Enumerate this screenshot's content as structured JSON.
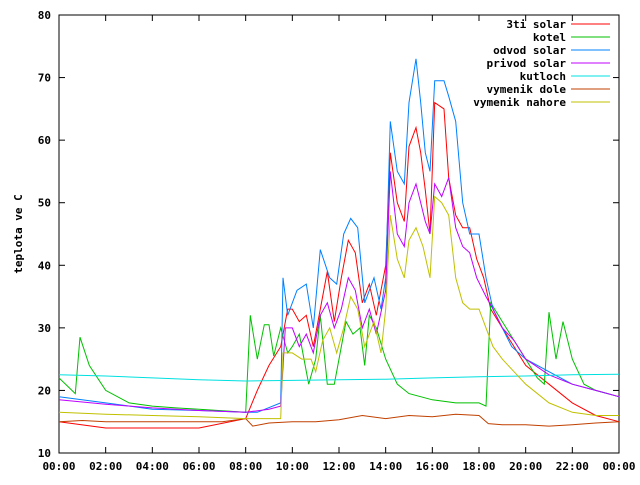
{
  "chart_data": {
    "type": "line",
    "ylabel": "teplota ve C",
    "xlabel": "",
    "xlim": [
      0,
      24
    ],
    "ylim": [
      10,
      80
    ],
    "x_ticks": [
      {
        "v": 0,
        "label": "00:00"
      },
      {
        "v": 2,
        "label": "02:00"
      },
      {
        "v": 4,
        "label": "04:00"
      },
      {
        "v": 6,
        "label": "06:00"
      },
      {
        "v": 8,
        "label": "08:00"
      },
      {
        "v": 10,
        "label": "10:00"
      },
      {
        "v": 12,
        "label": "12:00"
      },
      {
        "v": 14,
        "label": "14:00"
      },
      {
        "v": 16,
        "label": "16:00"
      },
      {
        "v": 18,
        "label": "18:00"
      },
      {
        "v": 20,
        "label": "20:00"
      },
      {
        "v": 22,
        "label": "22:00"
      },
      {
        "v": 24,
        "label": "00:00"
      }
    ],
    "y_ticks": [
      {
        "v": 10,
        "label": "10"
      },
      {
        "v": 20,
        "label": "20"
      },
      {
        "v": 30,
        "label": "30"
      },
      {
        "v": 40,
        "label": "40"
      },
      {
        "v": 50,
        "label": "50"
      },
      {
        "v": 60,
        "label": "60"
      },
      {
        "v": 70,
        "label": "70"
      },
      {
        "v": 80,
        "label": "80"
      }
    ],
    "grid": false,
    "legend_position": "top-right",
    "series": [
      {
        "name": "3ti solar",
        "color": "#ff0000",
        "points": [
          [
            0,
            15
          ],
          [
            2,
            14
          ],
          [
            4,
            14
          ],
          [
            6,
            14
          ],
          [
            8,
            15.5
          ],
          [
            8.5,
            20
          ],
          [
            9,
            24
          ],
          [
            9.5,
            27
          ],
          [
            9.8,
            33
          ],
          [
            10,
            33
          ],
          [
            10.3,
            31
          ],
          [
            10.6,
            32
          ],
          [
            10.9,
            27
          ],
          [
            11.2,
            33
          ],
          [
            11.5,
            39
          ],
          [
            11.8,
            31
          ],
          [
            12.1,
            38
          ],
          [
            12.4,
            44
          ],
          [
            12.7,
            42
          ],
          [
            13,
            34
          ],
          [
            13.3,
            37
          ],
          [
            13.6,
            32
          ],
          [
            14,
            40
          ],
          [
            14.2,
            58
          ],
          [
            14.5,
            50
          ],
          [
            14.8,
            47
          ],
          [
            15,
            59
          ],
          [
            15.3,
            62
          ],
          [
            15.5,
            58
          ],
          [
            15.7,
            52
          ],
          [
            15.9,
            45
          ],
          [
            16.1,
            66
          ],
          [
            16.5,
            65
          ],
          [
            16.7,
            54
          ],
          [
            17,
            48
          ],
          [
            17.3,
            46
          ],
          [
            17.6,
            46
          ],
          [
            17.9,
            41
          ],
          [
            18.2,
            38
          ],
          [
            18.5,
            33
          ],
          [
            19,
            30
          ],
          [
            19.5,
            27
          ],
          [
            20,
            24
          ],
          [
            21,
            21
          ],
          [
            22,
            18
          ],
          [
            23,
            16
          ],
          [
            24,
            15
          ]
        ]
      },
      {
        "name": "kotel",
        "color": "#00c000",
        "points": [
          [
            0,
            22
          ],
          [
            0.7,
            19.5
          ],
          [
            0.9,
            28.5
          ],
          [
            1.3,
            24
          ],
          [
            2,
            20
          ],
          [
            3,
            18
          ],
          [
            4,
            17.5
          ],
          [
            5,
            17.2
          ],
          [
            6,
            17
          ],
          [
            8,
            16.5
          ],
          [
            8.2,
            32
          ],
          [
            8.5,
            25
          ],
          [
            8.8,
            30.5
          ],
          [
            9,
            30.5
          ],
          [
            9.2,
            25.5
          ],
          [
            9.5,
            30
          ],
          [
            9.8,
            26
          ],
          [
            10,
            27
          ],
          [
            10.3,
            29
          ],
          [
            10.7,
            21
          ],
          [
            11,
            25
          ],
          [
            11.2,
            32
          ],
          [
            11.5,
            21
          ],
          [
            11.8,
            21
          ],
          [
            12,
            25
          ],
          [
            12.3,
            31
          ],
          [
            12.6,
            29
          ],
          [
            12.9,
            30
          ],
          [
            13.1,
            24
          ],
          [
            13.3,
            32
          ],
          [
            13.6,
            30
          ],
          [
            14,
            25
          ],
          [
            14.5,
            21
          ],
          [
            15,
            19.5
          ],
          [
            16,
            18.5
          ],
          [
            17,
            18
          ],
          [
            18,
            18
          ],
          [
            18.3,
            17.5
          ],
          [
            18.5,
            34
          ],
          [
            19,
            31
          ],
          [
            19.5,
            28
          ],
          [
            20,
            25
          ],
          [
            20.5,
            22
          ],
          [
            20.8,
            21
          ],
          [
            21,
            32.5
          ],
          [
            21.3,
            25
          ],
          [
            21.6,
            31
          ],
          [
            22,
            25
          ],
          [
            22.5,
            21
          ],
          [
            23,
            20
          ],
          [
            24,
            19
          ]
        ]
      },
      {
        "name": "odvod solar",
        "color": "#0080ff",
        "points": [
          [
            0,
            19
          ],
          [
            2,
            18
          ],
          [
            4,
            17
          ],
          [
            6,
            16.8
          ],
          [
            8,
            16.5
          ],
          [
            8.5,
            16.5
          ],
          [
            9.5,
            18
          ],
          [
            9.6,
            38
          ],
          [
            9.8,
            32
          ],
          [
            10.2,
            36
          ],
          [
            10.6,
            37
          ],
          [
            10.9,
            30
          ],
          [
            11.2,
            42.5
          ],
          [
            11.6,
            38
          ],
          [
            11.9,
            37
          ],
          [
            12.2,
            45
          ],
          [
            12.5,
            47.5
          ],
          [
            12.8,
            46
          ],
          [
            13.1,
            34
          ],
          [
            13.5,
            38
          ],
          [
            13.8,
            33
          ],
          [
            14,
            38
          ],
          [
            14.2,
            63
          ],
          [
            14.5,
            55
          ],
          [
            14.8,
            53
          ],
          [
            15,
            66
          ],
          [
            15.3,
            73
          ],
          [
            15.5,
            66
          ],
          [
            15.7,
            58
          ],
          [
            15.9,
            55
          ],
          [
            16.1,
            69.5
          ],
          [
            16.5,
            69.5
          ],
          [
            16.7,
            67
          ],
          [
            17,
            63
          ],
          [
            17.3,
            50
          ],
          [
            17.6,
            45
          ],
          [
            18,
            45
          ],
          [
            18.3,
            38
          ],
          [
            18.6,
            33
          ],
          [
            19,
            30
          ],
          [
            19.4,
            27
          ],
          [
            20,
            25
          ],
          [
            21,
            23
          ],
          [
            22,
            21
          ],
          [
            23,
            20
          ],
          [
            24,
            19
          ]
        ]
      },
      {
        "name": "privod solar",
        "color": "#c000ff",
        "points": [
          [
            0,
            18.5
          ],
          [
            2,
            17.8
          ],
          [
            4,
            17.2
          ],
          [
            6,
            16.8
          ],
          [
            8,
            16.5
          ],
          [
            9,
            17
          ],
          [
            9.5,
            17.5
          ],
          [
            9.7,
            30
          ],
          [
            10,
            30
          ],
          [
            10.3,
            27
          ],
          [
            10.6,
            29
          ],
          [
            10.9,
            26
          ],
          [
            11.2,
            32
          ],
          [
            11.5,
            34
          ],
          [
            11.8,
            30
          ],
          [
            12.1,
            33
          ],
          [
            12.4,
            38
          ],
          [
            12.7,
            36
          ],
          [
            13,
            30
          ],
          [
            13.3,
            33
          ],
          [
            13.6,
            29
          ],
          [
            14,
            36
          ],
          [
            14.2,
            55
          ],
          [
            14.5,
            45
          ],
          [
            14.8,
            43
          ],
          [
            15,
            50
          ],
          [
            15.3,
            53
          ],
          [
            15.5,
            50
          ],
          [
            15.7,
            47
          ],
          [
            15.9,
            45
          ],
          [
            16.1,
            53
          ],
          [
            16.4,
            51
          ],
          [
            16.7,
            54
          ],
          [
            17,
            46
          ],
          [
            17.3,
            43
          ],
          [
            17.6,
            42
          ],
          [
            17.9,
            38
          ],
          [
            18.3,
            35
          ],
          [
            18.6,
            33
          ],
          [
            19,
            30
          ],
          [
            19.5,
            28
          ],
          [
            20,
            25
          ],
          [
            21,
            22.5
          ],
          [
            22,
            21
          ],
          [
            23,
            20
          ],
          [
            24,
            19
          ]
        ]
      },
      {
        "name": "kutloch",
        "color": "#00e0e0",
        "points": [
          [
            0,
            22.5
          ],
          [
            2,
            22.3
          ],
          [
            4,
            22
          ],
          [
            6,
            21.7
          ],
          [
            8,
            21.5
          ],
          [
            10,
            21.6
          ],
          [
            12,
            21.7
          ],
          [
            14,
            21.8
          ],
          [
            16,
            22
          ],
          [
            18,
            22.2
          ],
          [
            20,
            22.3
          ],
          [
            22,
            22.5
          ],
          [
            24,
            22.6
          ]
        ]
      },
      {
        "name": "vymenik dole",
        "color": "#c04000",
        "points": [
          [
            0,
            15
          ],
          [
            1,
            15.2
          ],
          [
            2,
            15
          ],
          [
            3,
            15
          ],
          [
            4,
            15
          ],
          [
            5,
            15
          ],
          [
            6,
            15
          ],
          [
            7,
            15
          ],
          [
            8,
            15.5
          ],
          [
            8.3,
            14.3
          ],
          [
            9,
            14.8
          ],
          [
            10,
            15
          ],
          [
            11,
            15
          ],
          [
            12,
            15.3
          ],
          [
            13,
            16
          ],
          [
            14,
            15.5
          ],
          [
            15,
            16
          ],
          [
            16,
            15.8
          ],
          [
            17,
            16.2
          ],
          [
            18,
            16
          ],
          [
            18.4,
            14.7
          ],
          [
            19,
            14.5
          ],
          [
            20,
            14.5
          ],
          [
            21,
            14.3
          ],
          [
            22,
            14.5
          ],
          [
            23,
            14.8
          ],
          [
            24,
            15
          ]
        ]
      },
      {
        "name": "vymenik nahore",
        "color": "#c0c000",
        "points": [
          [
            0,
            16.5
          ],
          [
            2,
            16.2
          ],
          [
            4,
            16
          ],
          [
            6,
            15.8
          ],
          [
            8,
            15.5
          ],
          [
            9.5,
            15.5
          ],
          [
            9.6,
            26
          ],
          [
            10,
            26
          ],
          [
            10.4,
            25
          ],
          [
            10.8,
            25
          ],
          [
            11,
            23
          ],
          [
            11.3,
            28
          ],
          [
            11.6,
            30
          ],
          [
            11.9,
            26
          ],
          [
            12.2,
            30
          ],
          [
            12.5,
            35
          ],
          [
            12.8,
            33
          ],
          [
            13.1,
            27
          ],
          [
            13.5,
            31
          ],
          [
            13.8,
            26
          ],
          [
            14,
            33
          ],
          [
            14.2,
            48
          ],
          [
            14.5,
            41
          ],
          [
            14.8,
            38
          ],
          [
            15,
            44
          ],
          [
            15.3,
            46
          ],
          [
            15.6,
            43
          ],
          [
            15.9,
            38
          ],
          [
            16.1,
            51
          ],
          [
            16.4,
            50
          ],
          [
            16.7,
            48
          ],
          [
            17,
            38
          ],
          [
            17.3,
            34
          ],
          [
            17.6,
            33
          ],
          [
            18,
            33
          ],
          [
            18.3,
            30
          ],
          [
            18.6,
            27
          ],
          [
            19,
            25
          ],
          [
            19.5,
            23
          ],
          [
            20,
            21
          ],
          [
            21,
            18
          ],
          [
            22,
            16.5
          ],
          [
            23,
            16
          ],
          [
            24,
            16
          ]
        ]
      }
    ]
  }
}
